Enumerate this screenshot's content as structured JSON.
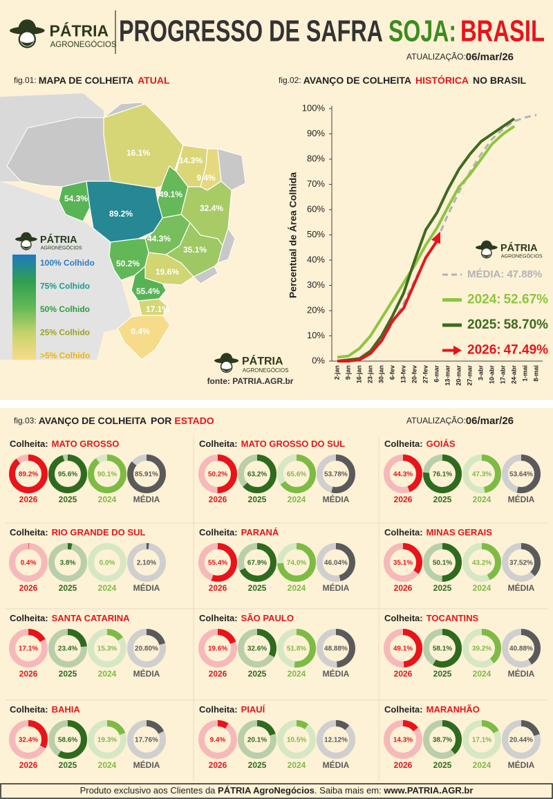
{
  "header": {
    "brand": "PÁTRIA",
    "brand_sub": "AGRONEGÓCIOS",
    "title": "PROGRESSO DE SAFRA",
    "title_crop": "SOJA:",
    "title_region": "BRASIL",
    "update_label": "ATUALIZAÇÃO:",
    "update_date": "06/mar/26"
  },
  "map": {
    "fig": "fig.01:",
    "title": "MAPA DE COLHEITA",
    "title_highlight": "ATUAL",
    "values": [
      16.1,
      14.3,
      9.4,
      49.1,
      32.4,
      54.3,
      89.2,
      44.3,
      35.1,
      50.2,
      19.6,
      55.4,
      17.1,
      0.4
    ],
    "value_labels": [
      "16.1%",
      "14.3%",
      "9.4%",
      "49.1%",
      "32.4%",
      "54.3%",
      "89.2%",
      "44.3%",
      "35.1%",
      "50.2%",
      "19.6%",
      "55.4%",
      "17.1%",
      "0.4%"
    ],
    "colors": [
      "#f7dc8a",
      "#c6d36c",
      "#62b857",
      "#2f9e50",
      "#1f78c4"
    ],
    "legend": [
      "100% Colhido",
      "75% Colhido",
      "50% Colhido",
      "25% Colhido",
      ">5% Colhido"
    ],
    "legend_colors": [
      "#2b7bbf",
      "#199c8a",
      "#2a9d3a",
      "#9aa31b",
      "#f2b300"
    ],
    "source": "fonte: PATRIA.AGR.br"
  },
  "chart_data": {
    "type": "line",
    "fig": "fig.02:",
    "title": "AVANÇO DE COLHEITA",
    "title_highlight": "HISTÓRICA",
    "title_tail": "NO BRASIL",
    "ylabel": "Percentual de Área Colhida",
    "categories": [
      "2-jan",
      "9-jan",
      "16-jan",
      "23-jan",
      "30-jan",
      "6-fev",
      "13-fev",
      "20-fev",
      "27-fev",
      "6-mar",
      "13-mar",
      "20-mar",
      "27-mar",
      "3-abr",
      "10-abr",
      "17-abr",
      "24-abr",
      "1-mai",
      "8-mai"
    ],
    "ylim": [
      0,
      100
    ],
    "yticks": [
      {
        "value": 0,
        "label": "0%"
      },
      {
        "value": 10,
        "label": "10%"
      },
      {
        "value": 20,
        "label": "20%"
      },
      {
        "value": 30,
        "label": "30%"
      },
      {
        "value": 40,
        "label": "40%"
      },
      {
        "value": 50,
        "label": "50%"
      },
      {
        "value": 60,
        "label": "60%"
      },
      {
        "value": 70,
        "label": "70%"
      },
      {
        "value": 80,
        "label": "80%"
      },
      {
        "value": 90,
        "label": "90%"
      },
      {
        "value": 100,
        "label": "100%"
      }
    ],
    "legend_separator": ":",
    "series": [
      {
        "name": "MÉDIA",
        "color": "#b3b3b3",
        "dashed": true,
        "current_label": "47.88%",
        "values": [
          0,
          0,
          1,
          3,
          8,
          15,
          23,
          32,
          41,
          47.88,
          58,
          67,
          75,
          82,
          88,
          92,
          95,
          96.5,
          97.5
        ]
      },
      {
        "name": "2024",
        "color": "#8cc63f",
        "dashed": false,
        "current_label": "52.67%",
        "values": [
          1.5,
          2,
          5,
          10,
          17,
          24,
          31,
          38,
          46,
          52.67,
          61,
          69,
          74,
          80,
          86,
          90,
          93,
          null,
          null
        ]
      },
      {
        "name": "2025",
        "color": "#3d6b1f",
        "dashed": false,
        "current_label": "58.70%",
        "values": [
          0,
          0.5,
          1,
          4,
          10,
          18,
          27,
          40,
          52,
          58.7,
          68,
          76,
          82,
          87,
          90,
          93,
          96,
          null,
          null
        ]
      },
      {
        "name": "2026",
        "color": "#e8141a",
        "dashed": false,
        "current_label": "47.49%",
        "values": [
          0,
          0,
          0.5,
          3,
          8,
          16,
          21,
          31,
          41,
          47.49,
          null,
          null,
          null,
          null,
          null,
          null,
          null,
          null,
          null
        ]
      }
    ]
  },
  "states": {
    "fig": "fig.03:",
    "title": "AVANÇO DE COLHEITA",
    "title_mid": "POR",
    "title_highlight": "ESTADO",
    "update_label": "ATUALIZAÇÃO:",
    "update_date": "06/mar/26",
    "panel_label": "Colheita:",
    "years": [
      "2026",
      "2025",
      "2024",
      "MÉDIA"
    ],
    "colors": [
      "#e8141a",
      "#2e6b1f",
      "#7dbb45",
      "#5a5a5a"
    ],
    "track_colors": [
      "#f6b9b9",
      "#b9cfa9",
      "#d5e8c3",
      "#cfcfcf"
    ],
    "items": [
      {
        "name": "MATO GROSSO",
        "values": [
          89.2,
          95.6,
          90.1,
          85.91
        ],
        "value_labels": [
          "89.2%",
          "95.6%",
          "90.1%",
          "85.91%"
        ]
      },
      {
        "name": "MATO GROSSO DO SUL",
        "values": [
          50.2,
          63.2,
          65.6,
          53.78
        ],
        "value_labels": [
          "50.2%",
          "63.2%",
          "65.6%",
          "53.78%"
        ]
      },
      {
        "name": "GOIÁS",
        "values": [
          44.3,
          76.1,
          47.3,
          53.64
        ],
        "value_labels": [
          "44.3%",
          "76.1%",
          "47.3%",
          "53.64%"
        ]
      },
      {
        "name": "RIO GRANDE DO SUL",
        "values": [
          0.4,
          3.8,
          0.0,
          2.1
        ],
        "value_labels": [
          "0.4%",
          "3.8%",
          "0.0%",
          "2.10%"
        ]
      },
      {
        "name": "PARANÁ",
        "values": [
          55.4,
          67.9,
          74.0,
          46.04
        ],
        "value_labels": [
          "55.4%",
          "67.9%",
          "74.0%",
          "46.04%"
        ]
      },
      {
        "name": "MINAS GERAIS",
        "values": [
          35.1,
          50.1,
          43.2,
          37.52
        ],
        "value_labels": [
          "35.1%",
          "50.1%",
          "43.2%",
          "37.52%"
        ]
      },
      {
        "name": "SANTA CATARINA",
        "values": [
          17.1,
          23.4,
          15.3,
          20.8
        ],
        "value_labels": [
          "17.1%",
          "23.4%",
          "15.3%",
          "20.80%"
        ]
      },
      {
        "name": "SÃO PAULO",
        "values": [
          19.6,
          32.6,
          51.8,
          48.88
        ],
        "value_labels": [
          "19.6%",
          "32.6%",
          "51.8%",
          "48.88%"
        ]
      },
      {
        "name": "TOCANTINS",
        "values": [
          49.1,
          58.1,
          39.2,
          40.88
        ],
        "value_labels": [
          "49.1%",
          "58.1%",
          "39.2%",
          "40.88%"
        ]
      },
      {
        "name": "BAHIA",
        "values": [
          32.4,
          58.6,
          19.3,
          17.76
        ],
        "value_labels": [
          "32.4%",
          "58.6%",
          "19.3%",
          "17.76%"
        ]
      },
      {
        "name": "PIAUÍ",
        "values": [
          9.4,
          20.1,
          10.5,
          12.12
        ],
        "value_labels": [
          "9.4%",
          "20.1%",
          "10.5%",
          "12.12%"
        ]
      },
      {
        "name": "MARANHÃO",
        "values": [
          14.3,
          38.7,
          17.1,
          20.44
        ],
        "value_labels": [
          "14.3%",
          "38.7%",
          "17.1%",
          "20.44%"
        ]
      }
    ]
  },
  "footer": {
    "lead": "Produto exclusivo aos Clientes da ",
    "brand": "PÁTRIA AgroNegócios",
    "mid": ". Saiba mais em: ",
    "url": "www.PATRIA.AGR.br"
  }
}
